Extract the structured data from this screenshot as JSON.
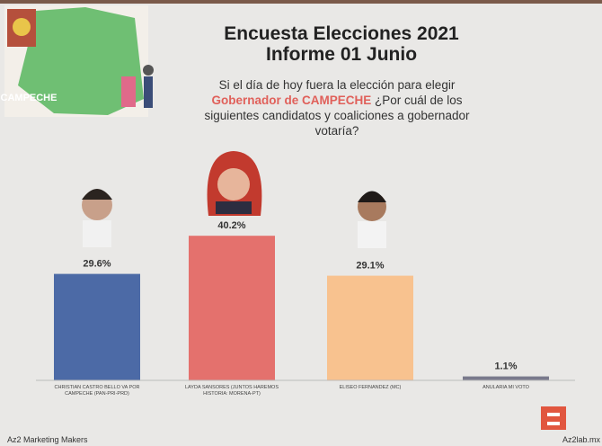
{
  "chart_data": {
    "type": "bar",
    "title": "Encuesta Elecciones 2021",
    "subtitle": "Informe 01 Junio",
    "question": [
      "Si el día de hoy fuera la elección para elegir",
      "Gobernador de CAMPECHE",
      "¿Por cuál de los siguientes candidatos y coaliciones a gobernador votaría?"
    ],
    "image_label": "CAMPECHE",
    "categories": [
      "CHRISTIAN CASTRO BELLO VA POR CAMPECHE (PAN-PRI-PRD)",
      "LAYDA SANSORES (JUNTOS HAREMOS HISTORIA: MORENA-PT)",
      "ELISEO FERNANDEZ (MC)",
      "ANULARIA MI VOTO"
    ],
    "values": [
      29.6,
      40.2,
      29.1,
      1.1
    ],
    "value_labels": [
      "29.6%",
      "40.2%",
      "29.1%",
      "1.1%"
    ],
    "colors": [
      "#4c6aa6",
      "#e4716d",
      "#f8c28f",
      "#7a7a8c"
    ],
    "footer": [
      "Az2 Marketing Makers",
      "Az2lab.mx"
    ]
  }
}
